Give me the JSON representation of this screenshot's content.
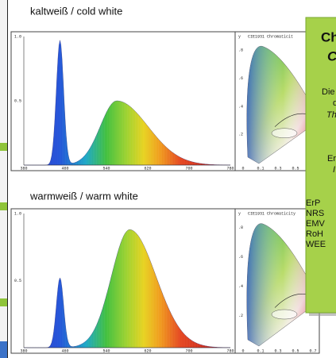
{
  "top": {
    "label": "kaltweiß / cold white",
    "spectrum": {
      "yticks": [
        "1.0",
        "0.5"
      ],
      "xticks": [
        "380",
        "460",
        "540",
        "620",
        "700",
        "780"
      ]
    },
    "cie": {
      "title": "CIE1931 Chromaticit",
      "axis": "y",
      "yticks": [
        ".8",
        ".6",
        ".4",
        ".2"
      ],
      "xticks": [
        "0",
        "0.1",
        "0.3",
        "0.5"
      ]
    }
  },
  "bottom": {
    "label": "warmweiß / warm white",
    "spectrum": {
      "yticks": [
        "1.0",
        "0.5"
      ],
      "xticks": [
        "380",
        "460",
        "540",
        "620",
        "700",
        "780"
      ]
    },
    "cie": {
      "title": "CIE1931 Chromaticity",
      "axis": "y",
      "yticks": [
        ".8",
        ".6",
        ".4",
        ".2"
      ],
      "xticks": [
        "0",
        "0.1",
        "0.3",
        "0.5",
        "0.7"
      ]
    }
  },
  "box": {
    "heading": [
      "Ch",
      "C"
    ],
    "lines": [
      "Die",
      "d",
      "Th",
      "Er",
      "I"
    ],
    "certs": [
      "ErP",
      "NRS",
      "EMV",
      "RoH",
      "WEE"
    ]
  }
}
